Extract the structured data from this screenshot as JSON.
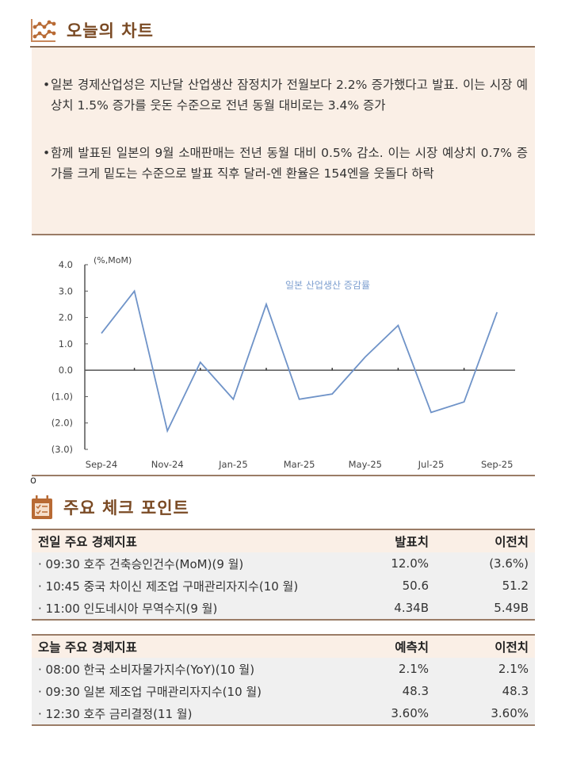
{
  "chart_section": {
    "title": "오늘의 차트",
    "icon": "line-chart-icon",
    "bullets": [
      "일본 경제산업성은 지난달 산업생산 잠정치가 전월보다 2.2% 증가했다고 발표. 이는 시장 예상치 1.5% 증가를 웃돈 수준으로 전년 동월 대비로는 3.4% 증가",
      "함께 발표된 일본의 9월 소매판매는 전년 동월 대비 0.5% 감소. 이는 시장 예상치 0.7% 증가를 크게 밑도는 수준으로 발표 직후 달러-엔 환율은 154엔을 웃돌다 하락"
    ],
    "bullet_symbol": "•",
    "footnote_mark": "o"
  },
  "chart_data": {
    "type": "line",
    "title": "",
    "ylabel": "(%,MoM)",
    "xlabel": "",
    "legend": [
      "일본 산업생산 증감률"
    ],
    "legend_position": "top-center (in-plot)",
    "line_color": "#6f93c8",
    "x": [
      "Sep-24",
      "Oct-24",
      "Nov-24",
      "Dec-24",
      "Jan-25",
      "Feb-25",
      "Mar-25",
      "Apr-25",
      "May-25",
      "Jun-25",
      "Jul-25",
      "Aug-25",
      "Sep-25"
    ],
    "x_tick_labels": [
      "Sep-24",
      "Nov-24",
      "Jan-25",
      "Mar-25",
      "May-25",
      "Jul-25",
      "Sep-25"
    ],
    "series": [
      {
        "name": "일본 산업생산 증감률",
        "values": [
          1.4,
          3.0,
          -2.3,
          0.3,
          -1.1,
          2.5,
          -1.1,
          -0.9,
          0.5,
          1.7,
          -1.6,
          -1.2,
          2.2
        ]
      }
    ],
    "y_tick_labels": [
      "4.0",
      "3.0",
      "2.0",
      "1.0",
      "0.0",
      "(1.0)",
      "(2.0)",
      "(3.0)"
    ],
    "ylim": [
      -3.0,
      4.0
    ],
    "grid": false
  },
  "checkpoints": {
    "title": "주요 체크 포인트",
    "icon": "calendar-checklist-icon",
    "yesterday": {
      "header": {
        "label": "전일 주요 경제지표",
        "col1": "발표치",
        "col2": "이전치"
      },
      "rows": [
        {
          "label": "· 09:30 호주 건축승인건수(MoM)(9 월)",
          "actual": "12.0%",
          "previous": "(3.6%)"
        },
        {
          "label": "· 10:45 중국 차이신 제조업 구매관리자지수(10 월)",
          "actual": "50.6",
          "previous": "51.2"
        },
        {
          "label": "· 11:00 인도네시아 무역수지(9 월)",
          "actual": "4.34B",
          "previous": "5.49B"
        }
      ]
    },
    "today": {
      "header": {
        "label": "오늘 주요 경제지표",
        "col1": "예측치",
        "col2": "이전치"
      },
      "rows": [
        {
          "label": "· 08:00 한국 소비자물가지수(YoY)(10 월)",
          "forecast": "2.1%",
          "previous": "2.1%"
        },
        {
          "label": "· 09:30 일본 제조업 구매관리자지수(10 월)",
          "forecast": "48.3",
          "previous": "48.3"
        },
        {
          "label": "· 12:30 호주 금리결정(11 월)",
          "forecast": "3.60%",
          "previous": "3.60%"
        }
      ]
    }
  },
  "colors": {
    "brand_brown": "#7a4a24",
    "icon_orange": "#b86a34",
    "box_bg": "#faefe6",
    "rule": "#8a6a52",
    "line": "#6f93c8",
    "row_bg": "#f0f0f0"
  }
}
